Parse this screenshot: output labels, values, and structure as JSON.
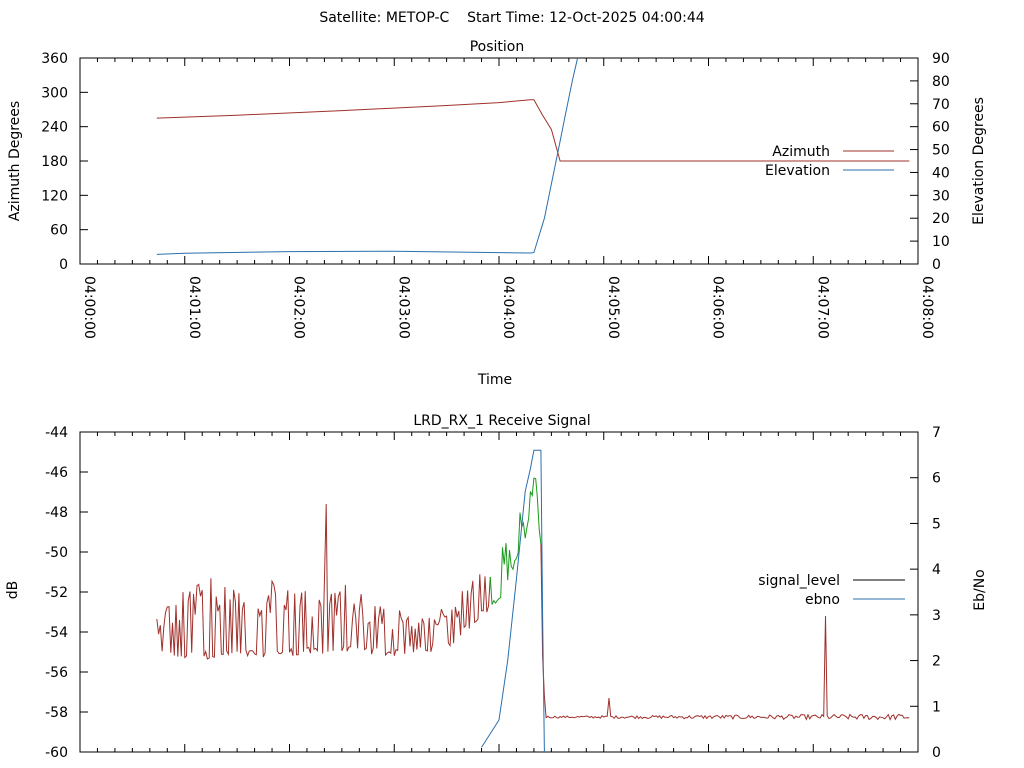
{
  "header": {
    "text": "Satellite: METOP-C    Start Time: 12-Oct-2025 04:00:44"
  },
  "colors": {
    "azimuth": "#a0302b",
    "elevation": "#2a6fae",
    "signal_level": "#a0302b",
    "signal_level_high": "#1a9a1a",
    "ebno": "#2a6fae",
    "signal_legend": "#000000"
  },
  "chart_data": [
    {
      "type": "line",
      "title": "Position",
      "xlabel": "Time",
      "ylabel": "Azimuth Degrees",
      "y2label": "Elevation Degrees",
      "xlim": [
        "04:00:00",
        "04:08:00"
      ],
      "ylim": [
        0,
        360
      ],
      "y2lim": [
        0,
        90
      ],
      "x_tick_labels": [
        "04:00:00",
        "04:01:00",
        "04:02:00",
        "04:03:00",
        "04:04:00",
        "04:05:00",
        "04:06:00",
        "04:07:00",
        "04:08:00"
      ],
      "y_tick_labels": [
        "0",
        "60",
        "120",
        "180",
        "240",
        "300",
        "360"
      ],
      "y2_tick_labels": [
        "0",
        "10",
        "20",
        "30",
        "40",
        "50",
        "60",
        "70",
        "80",
        "90"
      ],
      "legend_position": "right",
      "series": [
        {
          "name": "Azimuth",
          "axis": "left",
          "x": [
            "04:00:44",
            "04:01:30",
            "04:02:30",
            "04:03:30",
            "04:04:00",
            "04:04:18",
            "04:04:20",
            "04:04:25",
            "04:04:30",
            "04:04:35",
            "04:05:00",
            "04:06:00",
            "04:07:00",
            "04:07:55"
          ],
          "values": [
            255,
            260,
            268,
            277,
            282,
            287,
            287,
            260,
            235,
            180,
            180,
            180,
            180,
            180
          ]
        },
        {
          "name": "Elevation",
          "axis": "right",
          "x": [
            "04:00:44",
            "04:01:00",
            "04:02:00",
            "04:03:00",
            "04:04:00",
            "04:04:18",
            "04:04:20",
            "04:04:22",
            "04:04:26",
            "04:04:30",
            "04:04:34",
            "04:04:38",
            "04:04:42",
            "04:04:45"
          ],
          "values": [
            4.2,
            4.7,
            5.4,
            5.6,
            5.0,
            4.8,
            5.0,
            10,
            20,
            35,
            50,
            65,
            80,
            90
          ]
        }
      ]
    },
    {
      "type": "line",
      "title": "LRD_RX_1 Receive Signal",
      "ylabel": "dB",
      "y2label": "Eb/No",
      "xlim": [
        "04:00:00",
        "04:08:00"
      ],
      "ylim": [
        -60,
        -44
      ],
      "y2lim": [
        0,
        7
      ],
      "y_tick_labels": [
        "-60",
        "-58",
        "-56",
        "-54",
        "-52",
        "-50",
        "-48",
        "-46",
        "-44"
      ],
      "y2_tick_labels": [
        "0",
        "1",
        "2",
        "3",
        "4",
        "5",
        "6",
        "7"
      ],
      "legend_position": "right",
      "series": [
        {
          "name": "signal_level",
          "axis": "left",
          "noise_band": [
            {
              "x": "04:00:44",
              "low": -55.3,
              "high": -53.0
            },
            {
              "x": "04:01:00",
              "low": -55.4,
              "high": -51.6
            },
            {
              "x": "04:01:30",
              "low": -55.3,
              "high": -51.0
            },
            {
              "x": "04:02:00",
              "low": -55.2,
              "high": -51.3
            },
            {
              "x": "04:02:30",
              "low": -55.1,
              "high": -51.5
            },
            {
              "x": "04:03:00",
              "low": -55.2,
              "high": -52.8
            },
            {
              "x": "04:03:30",
              "low": -54.9,
              "high": -52.7
            },
            {
              "x": "04:04:00",
              "low": -52.5,
              "high": -50.0
            },
            {
              "x": "04:04:15",
              "low": -49.5,
              "high": -47.5
            },
            {
              "x": "04:04:21",
              "low": -46.5,
              "high": -45.8
            },
            {
              "x": "04:04:24",
              "low": -51.0,
              "high": -49.5
            },
            {
              "x": "04:04:25",
              "low": -56.5,
              "high": -54.5
            },
            {
              "x": "04:04:27",
              "low": -58.3,
              "high": -58.2
            },
            {
              "x": "04:07:55",
              "low": -58.4,
              "high": -58.1
            }
          ],
          "spikes": [
            {
              "x": "04:02:21",
              "value": -47.6
            },
            {
              "x": "04:05:03",
              "value": -57.3
            },
            {
              "x": "04:06:04",
              "value": -58.2
            },
            {
              "x": "04:07:07",
              "value": -53.2
            }
          ]
        },
        {
          "name": "ebno",
          "axis": "right",
          "x": [
            "04:03:50",
            "04:04:00",
            "04:04:05",
            "04:04:10",
            "04:04:15",
            "04:04:18",
            "04:04:20",
            "04:04:22",
            "04:04:24",
            "04:04:25",
            "04:04:26"
          ],
          "values": [
            0.1,
            0.7,
            2.0,
            3.8,
            5.7,
            6.2,
            6.6,
            6.6,
            6.6,
            3.0,
            0.0
          ]
        }
      ]
    }
  ]
}
